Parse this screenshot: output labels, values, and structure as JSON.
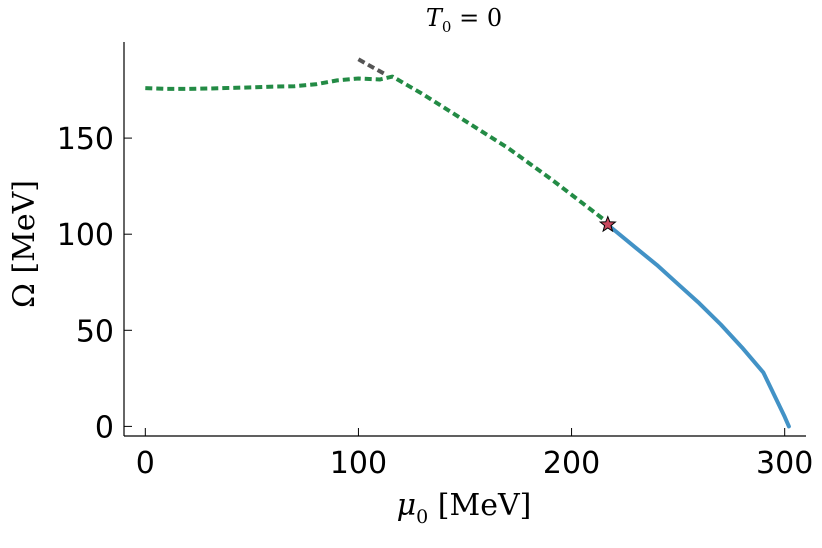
{
  "chart_data": {
    "type": "line",
    "title": "T_0 = 0",
    "title_parts": {
      "symbol": "T",
      "subscript": "0",
      "rest": " = 0"
    },
    "xlabel": "μ_0 [MeV]",
    "xlabel_parts": {
      "symbol": "μ",
      "subscript": "0",
      "unit": " [MeV]"
    },
    "ylabel": "Ω [MeV]",
    "xlim": [
      -10,
      310
    ],
    "ylim": [
      -5,
      200
    ],
    "xticks": [
      0,
      100,
      200,
      300
    ],
    "yticks": [
      0,
      50,
      100,
      150
    ],
    "grid": false,
    "legend": "none",
    "series": [
      {
        "style": "dashed",
        "color": "#555555",
        "x": [
          100,
          108,
          113
        ],
        "y": [
          191,
          186,
          183
        ]
      },
      {
        "style": "dashed",
        "color": "#238b45",
        "x": [
          0,
          10,
          20,
          30,
          40,
          50,
          60,
          70,
          80,
          90,
          100,
          110,
          116,
          130,
          150,
          170,
          190,
          210,
          217
        ],
        "y": [
          176,
          175.6,
          175.6,
          175.8,
          176.1,
          176.4,
          176.8,
          177,
          178,
          180,
          181,
          180.5,
          182,
          173,
          159,
          145,
          129,
          112,
          106
        ]
      },
      {
        "style": "solid",
        "color": "#4292c6",
        "x": [
          218,
          230,
          240,
          250,
          260,
          270,
          280,
          290,
          300,
          302
        ],
        "y": [
          104,
          93,
          84,
          74,
          64,
          53,
          41,
          28,
          5,
          0
        ]
      }
    ],
    "markers": [
      {
        "shape": "star",
        "x": 217,
        "y": 105,
        "color": "#c8475e"
      }
    ]
  }
}
